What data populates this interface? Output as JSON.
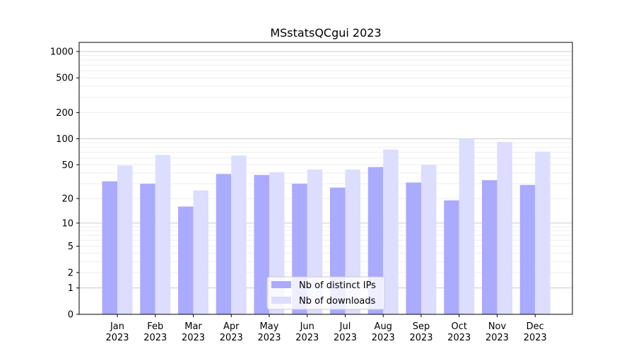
{
  "chart_data": {
    "type": "bar",
    "title": "MSstatsQCgui 2023",
    "xlabel": "",
    "ylabel": "",
    "yscale": "log(1+x)",
    "ylim": [
      0,
      1300
    ],
    "yticks": [
      0,
      1,
      2,
      5,
      10,
      20,
      50,
      100,
      200,
      500,
      1000
    ],
    "grid": true,
    "legend_position": "bottom-center",
    "categories": [
      "Jan\n2023",
      "Feb\n2023",
      "Mar\n2023",
      "Apr\n2023",
      "May\n2023",
      "Jun\n2023",
      "Jul\n2023",
      "Aug\n2023",
      "Sep\n2023",
      "Oct\n2023",
      "Nov\n2023",
      "Dec\n2023"
    ],
    "series": [
      {
        "name": "Nb of distinct IPs",
        "color": "#aaaaff",
        "values": [
          32,
          30,
          16,
          39,
          38,
          30,
          27,
          47,
          31,
          19,
          33,
          29
        ]
      },
      {
        "name": "Nb of downloads",
        "color": "#ddddff",
        "values": [
          49,
          65,
          25,
          64,
          41,
          44,
          44,
          75,
          50,
          100,
          92,
          71
        ]
      }
    ]
  }
}
